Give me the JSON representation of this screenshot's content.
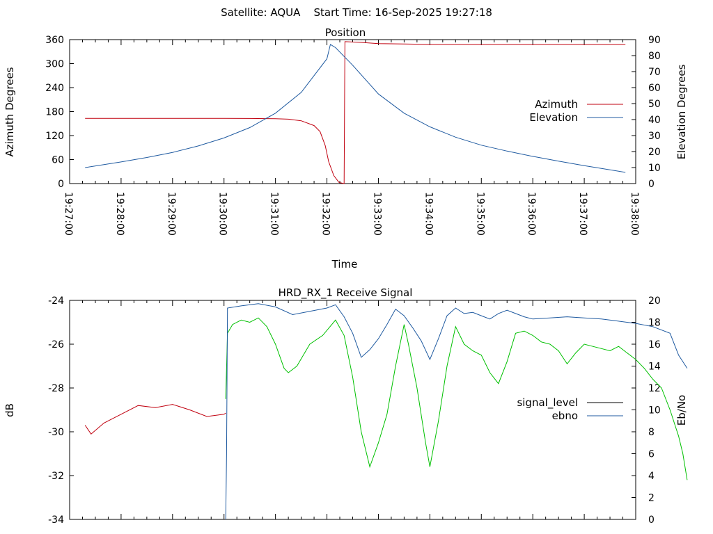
{
  "header": {
    "title": "Satellite: AQUA    Start Time: 16-Sep-2025 19:27:18"
  },
  "chart_data": [
    {
      "type": "line",
      "title": "Position",
      "xlabel": "Time",
      "ylabel": "Azimuth Degrees",
      "y2label": "Elevation Degrees",
      "x_ticks": [
        "19:27:00",
        "19:28:00",
        "19:29:00",
        "19:30:00",
        "19:31:00",
        "19:32:00",
        "19:33:00",
        "19:34:00",
        "19:35:00",
        "19:36:00",
        "19:37:00",
        "19:38:00"
      ],
      "xlim_seconds_of_day": [
        70020,
        70680
      ],
      "ylim": [
        0,
        360
      ],
      "y_ticks": [
        "0",
        "60",
        "120",
        "180",
        "240",
        "300",
        "360"
      ],
      "y2lim": [
        0,
        90
      ],
      "y2_ticks": [
        "0",
        "10",
        "20",
        "30",
        "40",
        "50",
        "60",
        "70",
        "80",
        "90"
      ],
      "legend_position": "right",
      "series": [
        {
          "name": "Azimuth",
          "axis": "y",
          "color": "#c0000f",
          "points": [
            [
              "19:27:18",
              163
            ],
            [
              "19:28:00",
              163
            ],
            [
              "19:29:00",
              163
            ],
            [
              "19:30:00",
              163
            ],
            [
              "19:30:30",
              162.8
            ],
            [
              "19:31:00",
              162
            ],
            [
              "19:31:15",
              161
            ],
            [
              "19:31:30",
              157
            ],
            [
              "19:31:45",
              145
            ],
            [
              "19:31:52",
              130
            ],
            [
              "19:31:58",
              95
            ],
            [
              "19:32:02",
              55
            ],
            [
              "19:32:08",
              20
            ],
            [
              "19:32:14",
              3
            ],
            [
              "19:32:20",
              0
            ],
            [
              "19:32:21",
              355
            ],
            [
              "19:32:40",
              353
            ],
            [
              "19:33:00",
              350
            ],
            [
              "19:33:30",
              349
            ],
            [
              "19:34:00",
              348
            ],
            [
              "19:35:00",
              348
            ],
            [
              "19:36:00",
              348
            ],
            [
              "19:37:00",
              348
            ],
            [
              "19:37:48",
              348
            ]
          ]
        },
        {
          "name": "Elevation",
          "axis": "y2",
          "color": "#1f5aa0",
          "points": [
            [
              "19:27:18",
              10
            ],
            [
              "19:28:00",
              13.5
            ],
            [
              "19:28:30",
              16.3
            ],
            [
              "19:29:00",
              19.5
            ],
            [
              "19:29:30",
              23.5
            ],
            [
              "19:30:00",
              28.5
            ],
            [
              "19:30:30",
              35
            ],
            [
              "19:31:00",
              44
            ],
            [
              "19:31:30",
              57
            ],
            [
              "19:32:00",
              78
            ],
            [
              "19:32:04",
              87
            ],
            [
              "19:32:10",
              85
            ],
            [
              "19:32:30",
              74
            ],
            [
              "19:33:00",
              56
            ],
            [
              "19:33:30",
              44
            ],
            [
              "19:34:00",
              35.5
            ],
            [
              "19:34:30",
              29
            ],
            [
              "19:35:00",
              24
            ],
            [
              "19:35:30",
              20.3
            ],
            [
              "19:36:00",
              17
            ],
            [
              "19:36:30",
              14
            ],
            [
              "19:37:00",
              11.2
            ],
            [
              "19:37:48",
              7
            ]
          ]
        }
      ]
    },
    {
      "type": "line",
      "title": "HRD_RX_1 Receive Signal",
      "ylabel": "dB",
      "y2label": "Eb/No",
      "ylim": [
        -34,
        -24
      ],
      "y_ticks": [
        "-34",
        "-32",
        "-30",
        "-28",
        "-26",
        "-24"
      ],
      "y2lim": [
        0,
        20
      ],
      "y2_ticks": [
        "0",
        "2",
        "4",
        "6",
        "8",
        "10",
        "12",
        "14",
        "16",
        "18",
        "20"
      ],
      "legend_position": "right",
      "legend": [
        {
          "name": "signal_level",
          "color": "#000000"
        },
        {
          "name": "ebno",
          "color": "#1f5aa0"
        }
      ],
      "series": [
        {
          "name": "signal_level",
          "axis": "y",
          "color": "#c0000f",
          "points": [
            [
              "19:27:18",
              -29.7
            ],
            [
              "19:27:25",
              -30.1
            ],
            [
              "19:27:40",
              -29.6
            ],
            [
              "19:28:00",
              -29.2
            ],
            [
              "19:28:20",
              -28.8
            ],
            [
              "19:28:40",
              -28.9
            ],
            [
              "19:29:00",
              -28.75
            ],
            [
              "19:29:20",
              -29.0
            ],
            [
              "19:29:40",
              -29.3
            ],
            [
              "19:30:00",
              -29.2
            ],
            [
              "19:30:02",
              -29.15
            ]
          ]
        },
        {
          "name": "signal_level",
          "axis": "y",
          "color": "#00c000",
          "points": [
            [
              "19:30:02",
              -28.5
            ],
            [
              "19:30:04",
              -25.5
            ],
            [
              "19:30:10",
              -25.1
            ],
            [
              "19:30:20",
              -24.9
            ],
            [
              "19:30:30",
              -25.0
            ],
            [
              "19:30:40",
              -24.8
            ],
            [
              "19:30:50",
              -25.2
            ],
            [
              "19:31:00",
              -26.0
            ],
            [
              "19:31:10",
              -27.1
            ],
            [
              "19:31:15",
              -27.3
            ],
            [
              "19:31:25",
              -27.0
            ],
            [
              "19:31:40",
              -26.0
            ],
            [
              "19:31:55",
              -25.6
            ],
            [
              "19:32:10",
              -24.9
            ],
            [
              "19:32:20",
              -25.6
            ],
            [
              "19:32:30",
              -27.5
            ],
            [
              "19:32:40",
              -30.0
            ],
            [
              "19:32:50",
              -31.6
            ],
            [
              "19:33:00",
              -30.5
            ],
            [
              "19:33:10",
              -29.2
            ],
            [
              "19:33:20",
              -27.0
            ],
            [
              "19:33:30",
              -25.1
            ],
            [
              "19:33:35",
              -26.0
            ],
            [
              "19:33:45",
              -28.0
            ],
            [
              "19:33:55",
              -30.5
            ],
            [
              "19:34:00",
              -31.6
            ],
            [
              "19:34:10",
              -29.5
            ],
            [
              "19:34:20",
              -27.0
            ],
            [
              "19:34:30",
              -25.2
            ],
            [
              "19:34:40",
              -26.0
            ],
            [
              "19:34:50",
              -26.3
            ],
            [
              "19:35:00",
              -26.5
            ],
            [
              "19:35:10",
              -27.3
            ],
            [
              "19:35:20",
              -27.8
            ],
            [
              "19:35:30",
              -26.8
            ],
            [
              "19:35:40",
              -25.5
            ],
            [
              "19:35:50",
              -25.4
            ],
            [
              "19:36:00",
              -25.6
            ],
            [
              "19:36:10",
              -25.9
            ],
            [
              "19:36:20",
              -26.0
            ],
            [
              "19:36:30",
              -26.3
            ],
            [
              "19:36:40",
              -26.9
            ],
            [
              "19:36:50",
              -26.4
            ],
            [
              "19:37:00",
              -26.0
            ],
            [
              "19:37:10",
              -26.1
            ],
            [
              "19:37:20",
              -26.2
            ],
            [
              "19:37:30",
              -26.3
            ],
            [
              "19:37:40",
              -26.1
            ],
            [
              "19:37:50",
              -26.4
            ],
            [
              "19:38:00",
              -26.7
            ],
            [
              "19:38:10",
              -27.1
            ],
            [
              "19:38:20",
              -27.6
            ],
            [
              "19:38:30",
              -28.0
            ],
            [
              "19:38:40",
              -29.0
            ],
            [
              "19:38:50",
              -30.2
            ],
            [
              "19:38:55",
              -31.0
            ],
            [
              "19:39:00",
              -32.2
            ]
          ]
        },
        {
          "name": "ebno",
          "axis": "y2",
          "color": "#1f5aa0",
          "points": [
            [
              "19:30:02",
              0
            ],
            [
              "19:30:03",
              6
            ],
            [
              "19:30:04",
              19.3
            ],
            [
              "19:30:20",
              19.5
            ],
            [
              "19:30:40",
              19.7
            ],
            [
              "19:31:00",
              19.4
            ],
            [
              "19:31:20",
              18.7
            ],
            [
              "19:31:40",
              19.0
            ],
            [
              "19:32:00",
              19.3
            ],
            [
              "19:32:10",
              19.6
            ],
            [
              "19:32:20",
              18.5
            ],
            [
              "19:32:30",
              17.0
            ],
            [
              "19:32:40",
              14.8
            ],
            [
              "19:32:50",
              15.5
            ],
            [
              "19:33:00",
              16.5
            ],
            [
              "19:33:10",
              17.8
            ],
            [
              "19:33:20",
              19.2
            ],
            [
              "19:33:30",
              18.6
            ],
            [
              "19:33:40",
              17.5
            ],
            [
              "19:33:50",
              16.3
            ],
            [
              "19:34:00",
              14.6
            ],
            [
              "19:34:10",
              16.5
            ],
            [
              "19:34:20",
              18.6
            ],
            [
              "19:34:30",
              19.3
            ],
            [
              "19:34:40",
              18.8
            ],
            [
              "19:34:50",
              18.9
            ],
            [
              "19:35:00",
              18.6
            ],
            [
              "19:35:10",
              18.3
            ],
            [
              "19:35:20",
              18.8
            ],
            [
              "19:35:30",
              19.1
            ],
            [
              "19:35:40",
              18.8
            ],
            [
              "19:35:50",
              18.5
            ],
            [
              "19:36:00",
              18.3
            ],
            [
              "19:36:20",
              18.4
            ],
            [
              "19:36:40",
              18.5
            ],
            [
              "19:37:00",
              18.4
            ],
            [
              "19:37:20",
              18.3
            ],
            [
              "19:37:40",
              18.1
            ],
            [
              "19:38:00",
              17.9
            ],
            [
              "19:38:20",
              17.6
            ],
            [
              "19:38:40",
              17.0
            ],
            [
              "19:38:50",
              15.0
            ],
            [
              "19:39:00",
              13.8
            ]
          ]
        }
      ]
    }
  ]
}
